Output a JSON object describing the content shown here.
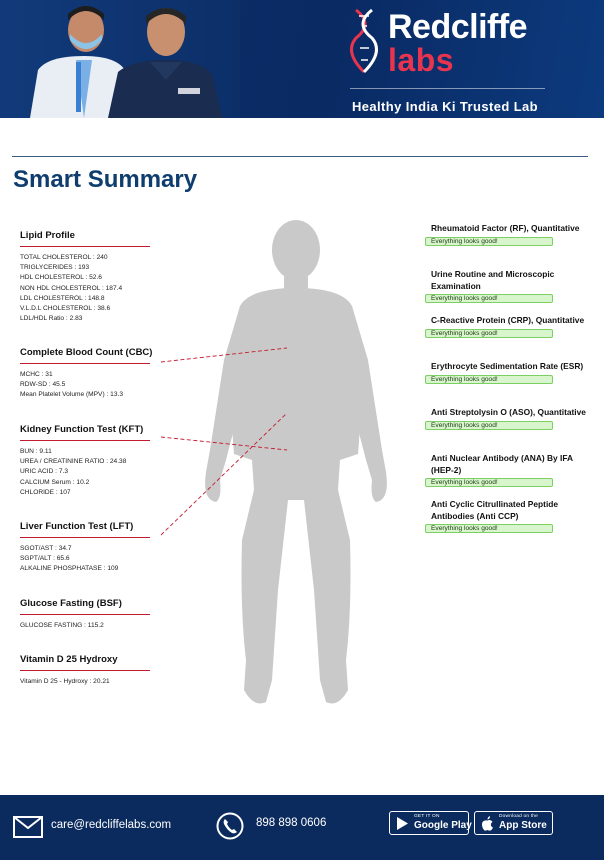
{
  "brand": {
    "name": "Redcliffe",
    "sub": "labs",
    "tagline": "Healthy India Ki Trusted Lab"
  },
  "title": "Smart Summary",
  "left_sections": [
    {
      "heading": "Lipid Profile",
      "lines": [
        "TOTAL CHOLESTEROL : 240",
        "TRIGLYCERIDES : 193",
        "HDL CHOLESTEROL : 52.6",
        "NON HDL CHOLESTEROL : 187.4",
        "LDL CHOLESTEROL : 148.8",
        "V.L.D.L CHOLESTEROL : 38.6",
        "LDL/HDL Ratio : 2.83"
      ]
    },
    {
      "heading": "Complete Blood Count (CBC)",
      "lines": [
        "MCHC : 31",
        "RDW-SD : 45.5",
        "Mean Platelet Volume (MPV) : 13.3"
      ]
    },
    {
      "heading": "Kidney Function Test (KFT)",
      "lines": [
        "BUN : 9.11",
        "UREA / CREATININE RATIO : 24.38",
        "URIC ACID : 7.3",
        "CALCIUM Serum : 10.2",
        "CHLORIDE : 107"
      ]
    },
    {
      "heading": "Liver Function Test (LFT)",
      "lines": [
        "SGOT/AST : 34.7",
        "SGPT/ALT : 65.6",
        "ALKALINE PHOSPHATASE : 109"
      ]
    },
    {
      "heading": "Glucose Fasting (BSF)",
      "lines": [
        "GLUCOSE FASTING : 115.2"
      ]
    },
    {
      "heading": "Vitamin D 25 Hydroxy",
      "lines": [
        "Vitamin D 25 - Hydroxy : 20.21"
      ]
    }
  ],
  "right_items": [
    {
      "title": "Rheumatoid Factor (RF), Quantitative",
      "status": "Everything looks good!"
    },
    {
      "title": "Urine Routine and Microscopic Examination",
      "status": "Everything looks good!"
    },
    {
      "title": "C-Reactive Protein (CRP), Quantitative",
      "status": "Everything looks good!"
    },
    {
      "title": "Erythrocyte Sedimentation Rate (ESR)",
      "status": "Everything looks good!"
    },
    {
      "title": "Anti Streptolysin O (ASO), Quantitative",
      "status": "Everything looks good!"
    },
    {
      "title": "Anti Nuclear Antibody (ANA) By IFA (HEP-2)",
      "status": "Everything looks good!"
    },
    {
      "title": "Anti Cyclic Citrullinated Peptide Antibodies (Anti CCP)",
      "status": "Everything looks good!"
    }
  ],
  "footer": {
    "email": "care@redcliffelabs.com",
    "phone": "898 898 0606",
    "google_play_small": "GET IT ON",
    "google_play_big": "Google Play",
    "app_store_small": "Download on the",
    "app_store_big": "App Store"
  },
  "colors": {
    "header_bg": "#0d2f6b",
    "accent_red": "#c21a2e",
    "title_blue": "#0f3d6e",
    "status_green": "#d8f5cd"
  },
  "icons": [
    "dna-icon",
    "mail-icon",
    "phone-icon",
    "google-play-icon",
    "apple-icon"
  ]
}
